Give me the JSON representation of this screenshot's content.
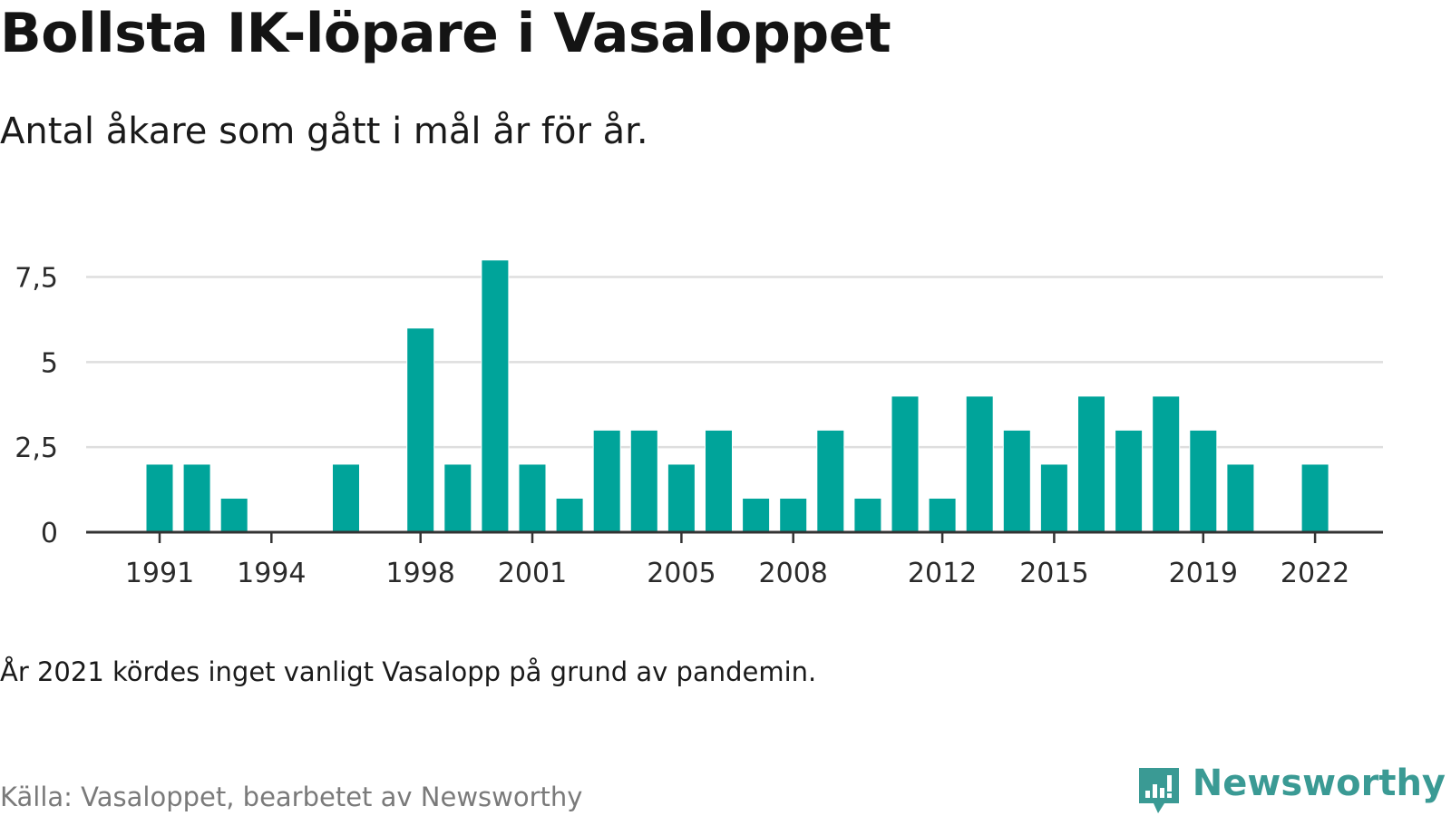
{
  "title": "Bollsta IK-löpare i Vasaloppet",
  "subtitle": "Antal åkare som gått i mål år för år.",
  "note": "År 2021 kördes inget vanligt Vasalopp på grund av pandemin.",
  "source": "Källa: Vasaloppet, bearbetet av Newsworthy",
  "brand": {
    "name": "Newsworthy",
    "logo_icon": "newsworthy-logo-icon"
  },
  "colors": {
    "bar": "#00a49a",
    "grid": "#dedede",
    "axis": "#333333",
    "brand": "#3a9a94"
  },
  "chart_data": {
    "type": "bar",
    "x": [
      1991,
      1992,
      1993,
      1994,
      1995,
      1996,
      1997,
      1998,
      1999,
      2000,
      2001,
      2002,
      2003,
      2004,
      2005,
      2006,
      2007,
      2008,
      2009,
      2010,
      2011,
      2012,
      2013,
      2014,
      2015,
      2016,
      2017,
      2018,
      2019,
      2020,
      2021,
      2022
    ],
    "values": [
      2,
      2,
      1,
      0,
      0,
      2,
      0,
      6,
      2,
      8,
      2,
      1,
      3,
      3,
      2,
      3,
      1,
      1,
      3,
      1,
      4,
      1,
      4,
      3,
      2,
      4,
      3,
      4,
      3,
      2,
      0,
      2
    ],
    "xticks": [
      1991,
      1994,
      1998,
      2001,
      2005,
      2008,
      2012,
      2015,
      2019,
      2022
    ],
    "xtick_labels": [
      "1991",
      "1994",
      "1998",
      "2001",
      "2005",
      "2008",
      "2012",
      "2015",
      "2019",
      "2022"
    ],
    "yticks": [
      0,
      2.5,
      5,
      7.5
    ],
    "ytick_labels": [
      "0",
      "2,5",
      "5",
      "7,5"
    ],
    "ylim": [
      0,
      8.1
    ],
    "grid": true,
    "legend": "none"
  }
}
